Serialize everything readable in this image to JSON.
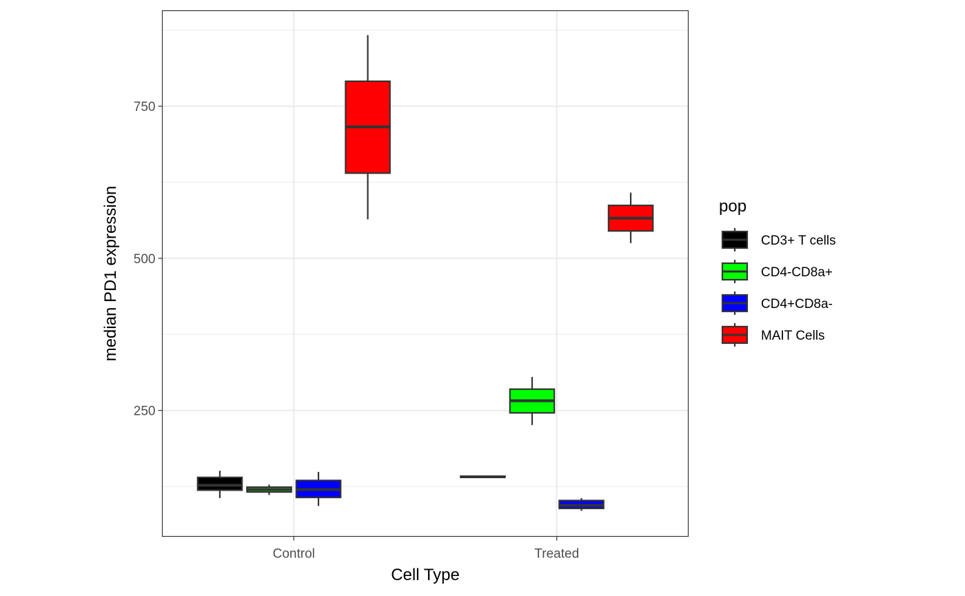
{
  "chart_data": {
    "type": "boxplot",
    "title": "",
    "xlabel": "Cell Type",
    "ylabel": "median PD1 expression",
    "categories": [
      "Control",
      "Treated"
    ],
    "ylim": [
      43,
      907
    ],
    "yticks": [
      250,
      500,
      750
    ],
    "grid": true,
    "legend": {
      "title": "pop",
      "position": "right",
      "items": [
        {
          "name": "CD3+ T cells",
          "color": "#000000"
        },
        {
          "name": "CD4-CD8a+",
          "color": "#00ff00"
        },
        {
          "name": "CD4+CD8a-",
          "color": "#0000ff"
        },
        {
          "name": "MAIT Cells",
          "color": "#ff0000"
        }
      ]
    },
    "series": [
      {
        "name": "CD3+ T cells",
        "color": "#000000",
        "boxes": [
          {
            "category": "Control",
            "min": 106,
            "q1": 119,
            "median": 127,
            "q3": 140,
            "max": 151
          },
          {
            "category": "Treated",
            "min": 140,
            "q1": 140,
            "median": 141,
            "q3": 142,
            "max": 142
          }
        ]
      },
      {
        "name": "CD4-CD8a+",
        "color": "#00ff00",
        "boxes": [
          {
            "category": "Control",
            "min": 111,
            "q1": 116,
            "median": 120,
            "q3": 124,
            "max": 128
          },
          {
            "category": "Treated",
            "min": 226,
            "q1": 246,
            "median": 266,
            "q3": 285,
            "max": 305
          }
        ]
      },
      {
        "name": "CD4+CD8a-",
        "color": "#0000ff",
        "boxes": [
          {
            "category": "Control",
            "min": 93,
            "q1": 107,
            "median": 120,
            "q3": 135,
            "max": 149
          },
          {
            "category": "Treated",
            "min": 85,
            "q1": 89,
            "median": 94,
            "q3": 102,
            "max": 106
          }
        ]
      },
      {
        "name": "MAIT Cells",
        "color": "#ff0000",
        "boxes": [
          {
            "category": "Control",
            "min": 564,
            "q1": 640,
            "median": 716,
            "q3": 791,
            "max": 867
          },
          {
            "category": "Treated",
            "min": 525,
            "q1": 545,
            "median": 566,
            "q3": 587,
            "max": 608
          }
        ]
      }
    ]
  }
}
